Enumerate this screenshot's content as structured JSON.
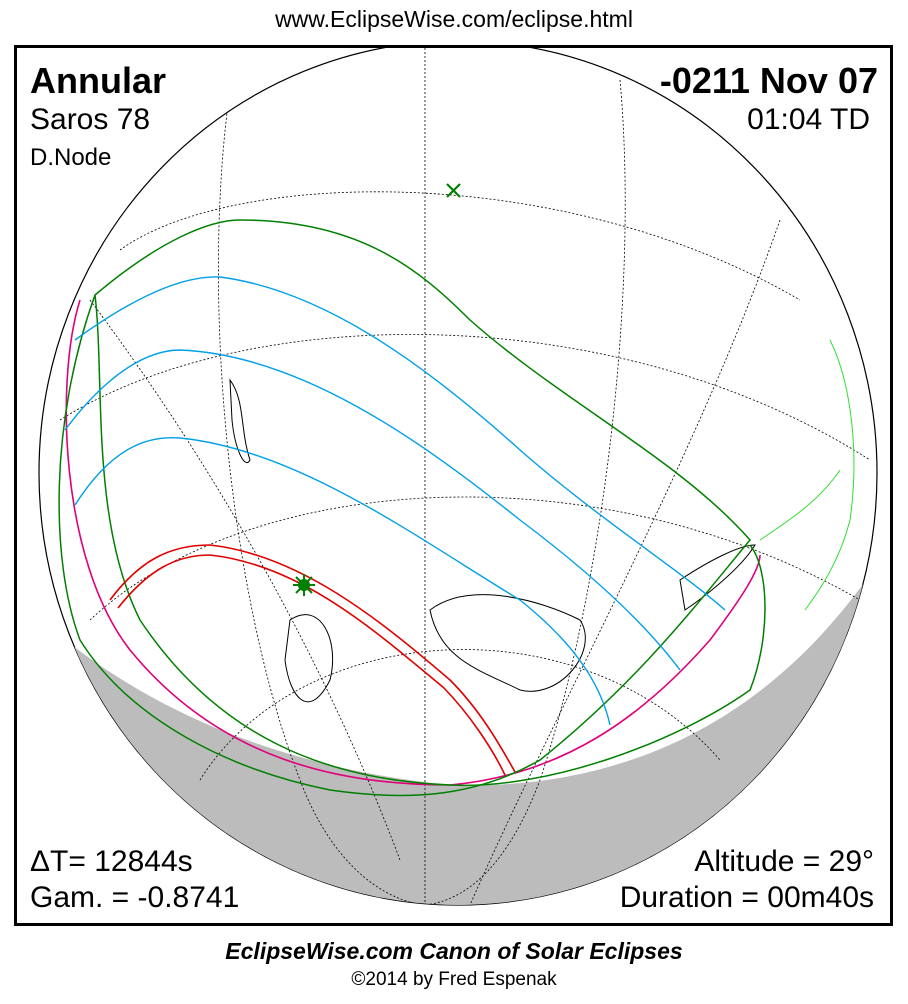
{
  "header": {
    "url": "www.EclipseWise.com/eclipse.html"
  },
  "eclipse": {
    "type": "Annular",
    "date": "-0211 Nov 07",
    "saros": "Saros  78",
    "time": "01:04 TD",
    "node": "D.Node",
    "delta_t": "ΔT=  12844s",
    "gamma": "Gam. = -0.8741",
    "altitude": "Altitude = 29°",
    "duration": "Duration = 00m40s"
  },
  "colors": {
    "annular_path": "#e00000",
    "penumbral_limits": "#008000",
    "partial_lines": "#00a0e8",
    "rise_set_curve": "#e0007a",
    "night_shade": "#bcbcbc",
    "greatest_eclipse_marker": "#008000"
  },
  "footer": {
    "title": "EclipseWise.com Canon of Solar Eclipses",
    "copyright": "©2014 by Fred Espenak"
  }
}
